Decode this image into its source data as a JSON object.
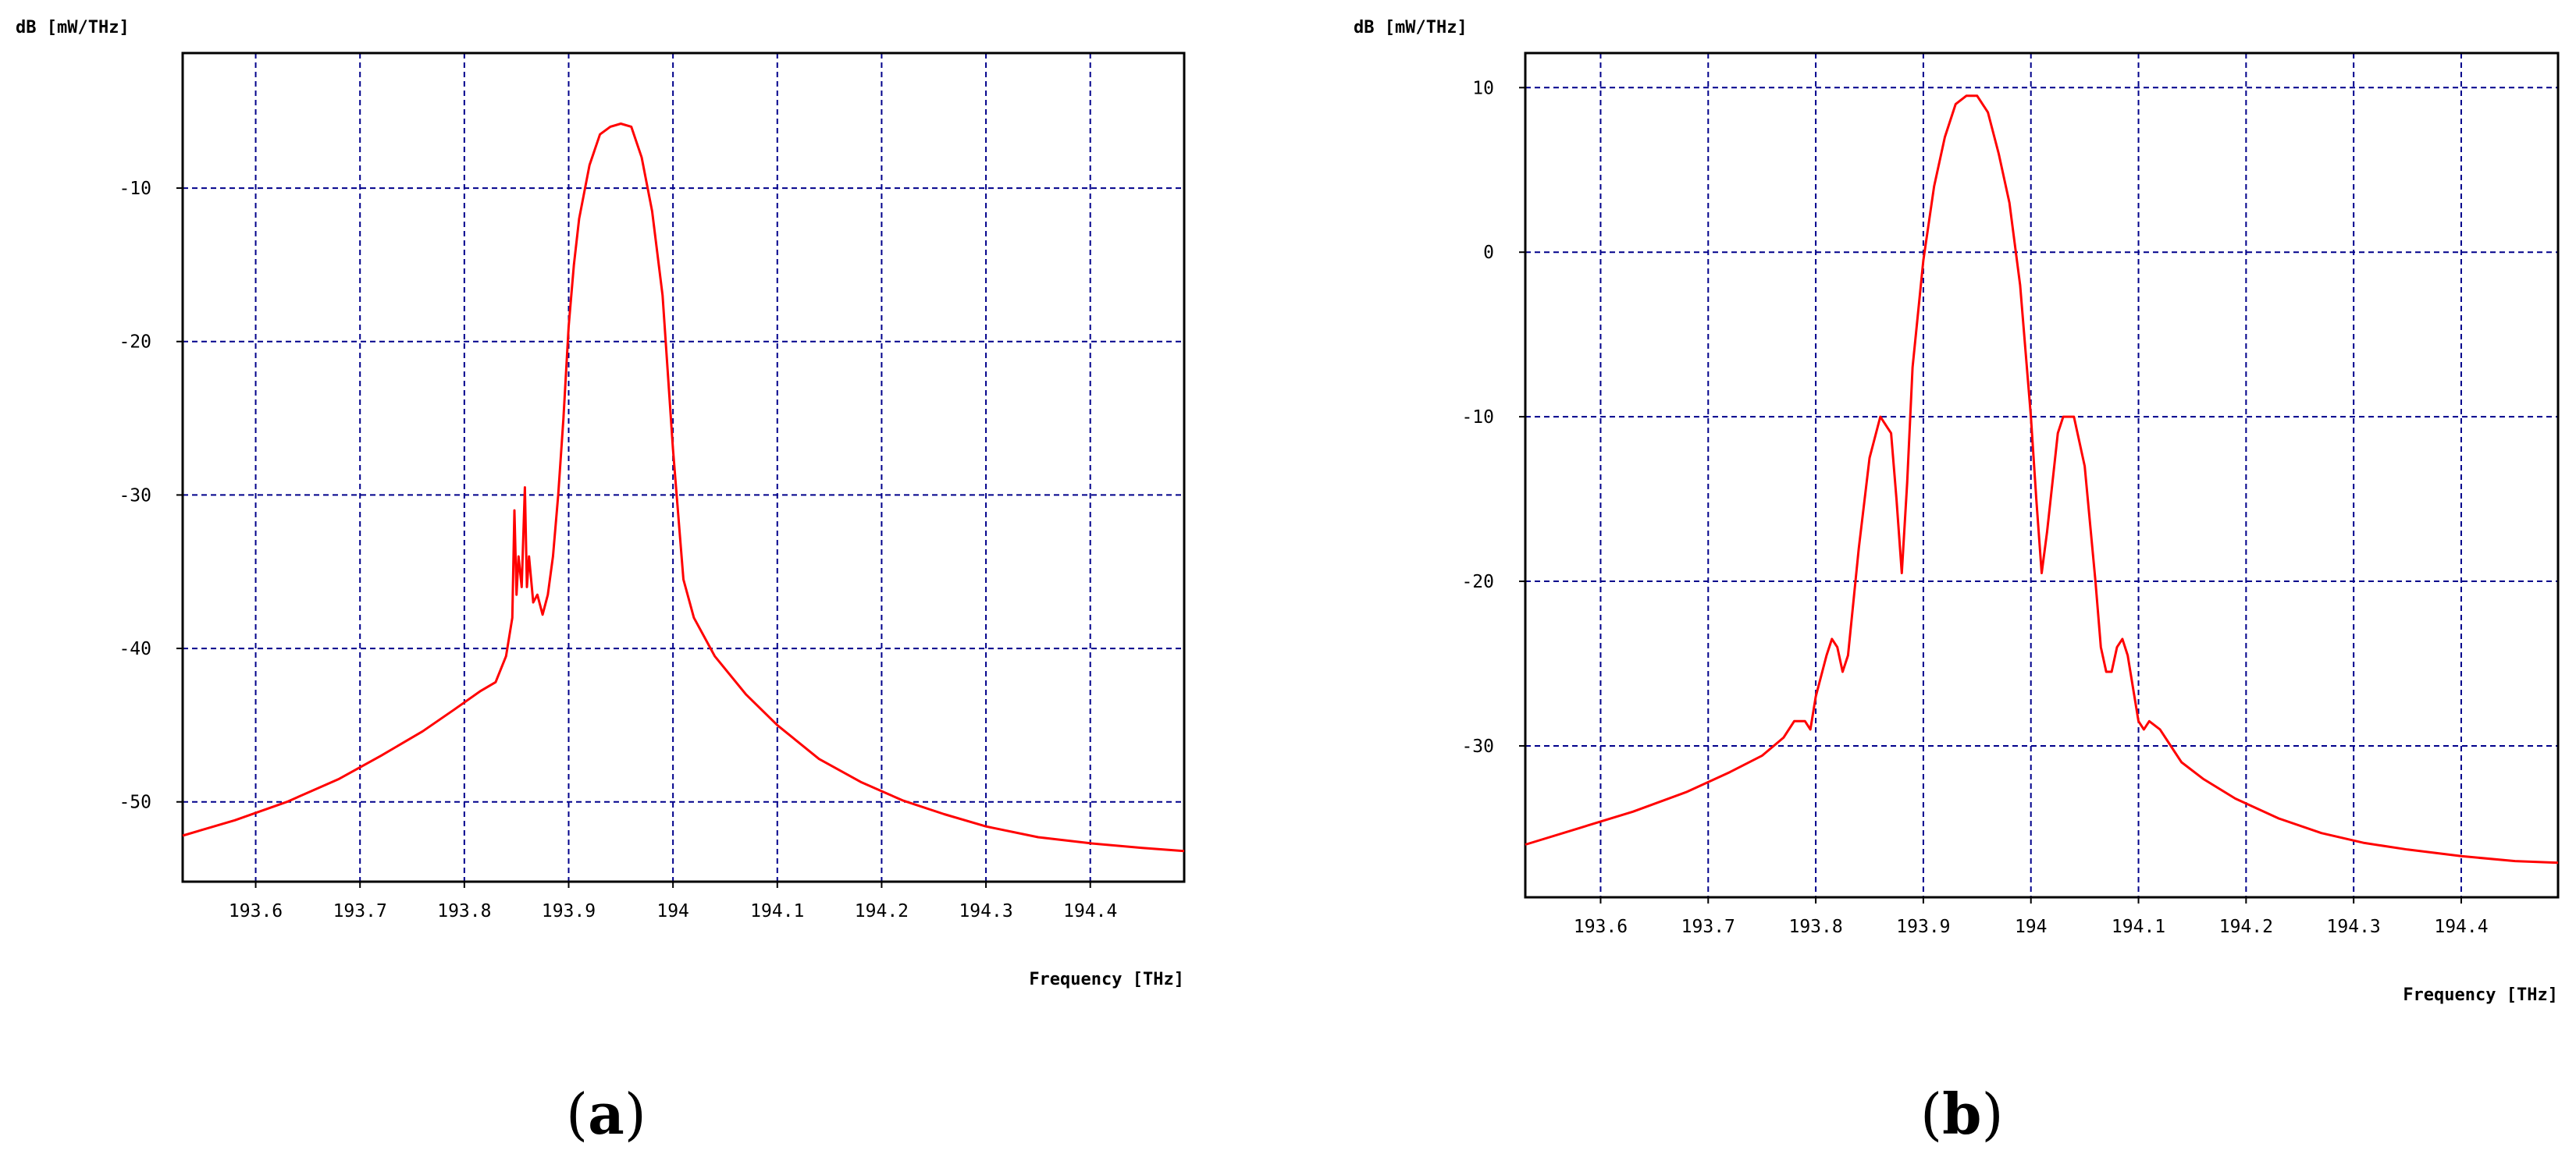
{
  "colors": {
    "curve": "#ff0000",
    "grid": "#00008b",
    "frame": "#000000",
    "background": "#ffffff"
  },
  "panels": [
    {
      "letter": "a"
    },
    {
      "letter": "b"
    }
  ],
  "chart_data": [
    {
      "type": "line",
      "ylabel": "dB [mW/THz]",
      "xlabel": "Frequency [THz]",
      "xlim": [
        193.53,
        194.49
      ],
      "ylim": [
        -55.2,
        -1.2
      ],
      "xticks": [
        193.6,
        193.7,
        193.8,
        193.9,
        194,
        194.1,
        194.2,
        194.3,
        194.4
      ],
      "xtick_labels": [
        "193.6",
        "193.7",
        "193.8",
        "193.9",
        "194",
        "194.1",
        "194.2",
        "194.3",
        "194.4"
      ],
      "yticks": [
        -10,
        -20,
        -30,
        -40,
        -50
      ],
      "ytick_labels": [
        "-10",
        "-20",
        "-30",
        "-40",
        "-50"
      ],
      "grid": true,
      "series": [
        {
          "x": [
            193.53,
            193.58,
            193.63,
            193.68,
            193.72,
            193.76,
            193.79,
            193.815,
            193.83,
            193.84,
            193.846,
            193.848,
            193.85,
            193.852,
            193.855,
            193.858,
            193.86,
            193.862,
            193.866,
            193.87,
            193.875,
            193.88,
            193.885,
            193.89,
            193.895,
            193.9,
            193.905,
            193.91,
            193.92,
            193.93,
            193.94,
            193.95,
            193.96,
            193.97,
            193.98,
            193.99,
            194.0,
            194.01,
            194.02,
            194.04,
            194.07,
            194.1,
            194.14,
            194.18,
            194.22,
            194.26,
            194.3,
            194.35,
            194.4,
            194.45,
            194.49
          ],
          "y": [
            -52.2,
            -51.2,
            -50.0,
            -48.5,
            -47.0,
            -45.4,
            -44.0,
            -42.8,
            -42.2,
            -40.5,
            -38.0,
            -31.0,
            -36.5,
            -34.0,
            -36.0,
            -29.5,
            -36.0,
            -34.0,
            -37.0,
            -36.5,
            -37.8,
            -36.5,
            -34.0,
            -30.0,
            -25.0,
            -19.0,
            -15.0,
            -12.0,
            -8.5,
            -6.5,
            -6.0,
            -5.8,
            -6.0,
            -8.0,
            -11.5,
            -17.0,
            -27.0,
            -35.5,
            -38.0,
            -40.5,
            -43.0,
            -45.0,
            -47.2,
            -48.7,
            -49.9,
            -50.8,
            -51.6,
            -52.3,
            -52.7,
            -53.0,
            -53.2
          ]
        }
      ]
    },
    {
      "type": "line",
      "ylabel": "dB [mW/THz]",
      "xlabel": "Frequency [THz]",
      "xlim": [
        193.53,
        194.49
      ],
      "ylim": [
        -39.2,
        12.1
      ],
      "xticks": [
        193.6,
        193.7,
        193.8,
        193.9,
        194,
        194.1,
        194.2,
        194.3,
        194.4
      ],
      "xtick_labels": [
        "193.6",
        "193.7",
        "193.8",
        "193.9",
        "194",
        "194.1",
        "194.2",
        "194.3",
        "194.4"
      ],
      "yticks": [
        10,
        0,
        -10,
        -20,
        -30
      ],
      "ytick_labels": [
        "10",
        "0",
        "-10",
        "-20",
        "-30"
      ],
      "grid": true,
      "series": [
        {
          "x": [
            193.53,
            193.58,
            193.63,
            193.68,
            193.72,
            193.75,
            193.77,
            193.78,
            193.79,
            193.795,
            193.8,
            193.81,
            193.815,
            193.82,
            193.825,
            193.83,
            193.84,
            193.85,
            193.86,
            193.87,
            193.875,
            193.88,
            193.885,
            193.89,
            193.9,
            193.91,
            193.92,
            193.93,
            193.94,
            193.95,
            193.96,
            193.97,
            193.98,
            193.99,
            194.0,
            194.005,
            194.01,
            194.015,
            194.02,
            194.025,
            194.03,
            194.04,
            194.05,
            194.06,
            194.065,
            194.07,
            194.075,
            194.08,
            194.085,
            194.09,
            194.1,
            194.105,
            194.11,
            194.12,
            194.13,
            194.14,
            194.16,
            194.19,
            194.23,
            194.27,
            194.31,
            194.35,
            194.4,
            194.45,
            194.49
          ],
          "y": [
            -36.0,
            -35.0,
            -34.0,
            -32.8,
            -31.6,
            -30.6,
            -29.5,
            -28.5,
            -28.5,
            -29.0,
            -27.0,
            -24.5,
            -23.5,
            -24.0,
            -25.5,
            -24.5,
            -18.0,
            -12.5,
            -10.0,
            -11.0,
            -15.0,
            -19.5,
            -14.0,
            -7.0,
            -0.5,
            4.0,
            7.0,
            9.0,
            9.5,
            9.5,
            8.5,
            6.0,
            3.0,
            -2.0,
            -10.0,
            -15.0,
            -19.5,
            -17.0,
            -14.0,
            -11.0,
            -10.0,
            -10.0,
            -13.0,
            -20.0,
            -24.0,
            -25.5,
            -25.5,
            -24.0,
            -23.5,
            -24.5,
            -28.5,
            -29.0,
            -28.5,
            -29.0,
            -30.0,
            -31.0,
            -32.0,
            -33.2,
            -34.4,
            -35.3,
            -35.9,
            -36.3,
            -36.7,
            -37.0,
            -37.1
          ]
        }
      ]
    }
  ]
}
